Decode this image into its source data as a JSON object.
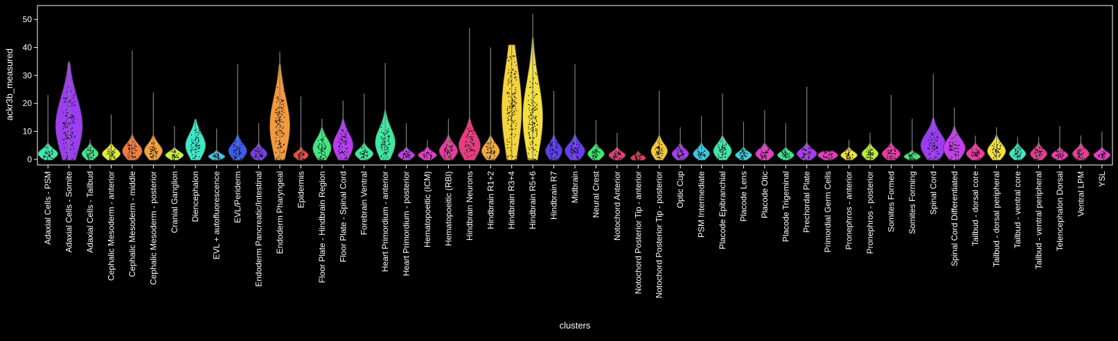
{
  "chart_data": {
    "type": "violin",
    "xlabel": "clusters",
    "ylabel": "ackr3b_measured",
    "ylim": [
      -2,
      55
    ],
    "yticks": [
      0,
      10,
      20,
      30,
      40,
      50
    ],
    "grid": false,
    "legend": "none",
    "background": "#000000",
    "axis_color": "#ffffff",
    "points_color": "#000000",
    "whisker_color": "#7f7f7f",
    "categories": [
      "Adaxial Cells - PSM",
      "Adaxial Cells - Somite",
      "Adaxial Cells - Tailbud",
      "Cephalic Mesoderm - anterior",
      "Cephalic Mesoderm - middle",
      "Cephalic Mesoderm - posterior",
      "Cranial Ganglion",
      "Diencephalon",
      "EVL + autofluorescence",
      "EVL/Periderm",
      "Endoderm Pancreatic/Intestinal",
      "Endoderm Pharyngeal",
      "Epidermis",
      "Floor Plate - Hindbrain Region",
      "Floor Plate - Spinal Cord",
      "Forebrain Ventral",
      "Heart Primordium - anterior",
      "Heart Primordium - posterior",
      "Hematopoeitic (ICM)",
      "Hematopoeitic (RBI)",
      "Hindbrain Neurons",
      "Hindbrain R1+2",
      "Hindbrain R3+4",
      "Hindbrain R5+6",
      "Hindbrain R7",
      "Midbrain",
      "Neural Crest",
      "Notochord Anterior",
      "Notochord Posterior Tip - anterior",
      "Notochord Posterior Tip - posterior",
      "Optic Cup",
      "PSM Intermediate",
      "Placode Epibranchial",
      "Placode Lens",
      "Placode Otic",
      "Placode Trigeminal",
      "Prechordal Plate",
      "Primordial Germ Cells",
      "Pronephros - anterior",
      "Pronephros - posterior",
      "Somites Formed",
      "Somites Forming",
      "Spinal Cord",
      "Spinal Cord Differentiated",
      "Tailbud - dorsal core",
      "Tailbud - dorsal peripheral",
      "Tailbud - ventral core",
      "Tailbud - ventral peripheral",
      "Telencephalon Dorsal",
      "Ventral LPM",
      "YSL"
    ],
    "max": [
      23,
      35,
      7,
      16,
      39,
      24,
      12,
      14.5,
      11,
      34,
      13,
      38.5,
      22.5,
      14.5,
      21,
      23.5,
      34.5,
      13,
      7,
      14.5,
      47,
      40,
      41,
      52,
      24.5,
      34,
      14,
      9.5,
      3,
      24.5,
      11.5,
      15.5,
      23.5,
      13.5,
      17.5,
      13,
      26,
      3,
      7,
      9.5,
      23,
      14.5,
      30.5,
      18.5,
      8.5,
      11.5,
      8,
      8,
      12,
      8.5,
      10
    ],
    "peak": [
      2,
      12,
      2,
      2,
      3,
      3,
      1.5,
      5,
      1,
      3,
      2,
      12,
      1.5,
      4,
      5,
      2,
      6,
      1.5,
      1.5,
      3,
      5,
      3,
      18,
      15,
      3,
      3,
      2,
      1.5,
      0.5,
      3,
      2,
      2,
      3,
      1.5,
      2,
      1.5,
      2,
      1.5,
      1.5,
      2,
      2,
      1,
      5,
      4,
      2,
      3,
      2,
      2,
      1.5,
      2,
      1.5
    ],
    "halfwidth": [
      0.6,
      0.8,
      0.5,
      0.55,
      0.6,
      0.55,
      0.55,
      0.6,
      0.5,
      0.55,
      0.5,
      0.6,
      0.45,
      0.55,
      0.6,
      0.55,
      0.6,
      0.5,
      0.55,
      0.55,
      0.65,
      0.55,
      0.6,
      0.6,
      0.5,
      0.6,
      0.5,
      0.5,
      0.45,
      0.5,
      0.5,
      0.5,
      0.55,
      0.5,
      0.55,
      0.5,
      0.6,
      0.6,
      0.5,
      0.5,
      0.55,
      0.5,
      0.75,
      0.65,
      0.55,
      0.55,
      0.5,
      0.5,
      0.5,
      0.5,
      0.5
    ],
    "colors": [
      "#3ee8b0",
      "#9a3ef0",
      "#3ee88a",
      "#dcec3c",
      "#f47c3c",
      "#f4a03c",
      "#c8f03c",
      "#3ee8c8",
      "#3ec8e8",
      "#3c5cf0",
      "#7a3cf0",
      "#f49a3c",
      "#f0503c",
      "#3ee880",
      "#b43cf0",
      "#3ee89c",
      "#3ee8a0",
      "#c43cf0",
      "#e83cd0",
      "#e83c9c",
      "#e83c80",
      "#f4a83c",
      "#f4d43c",
      "#f4e03c",
      "#5c3cf0",
      "#6a3cf0",
      "#3ee870",
      "#e83c7c",
      "#e83c5c",
      "#f4c83c",
      "#a83cf0",
      "#3ec8e8",
      "#3ee8a8",
      "#3cd0d8",
      "#e83cc8",
      "#3ee890",
      "#a83cf0",
      "#e83cc0",
      "#f4e43c",
      "#b8f03c",
      "#e83ca8",
      "#3ee878",
      "#9a3cf0",
      "#c83cf0",
      "#f03ca0",
      "#f4e03c",
      "#3ee8c0",
      "#e83c90",
      "#f03cb0",
      "#e83c98",
      "#e83cc8"
    ]
  }
}
